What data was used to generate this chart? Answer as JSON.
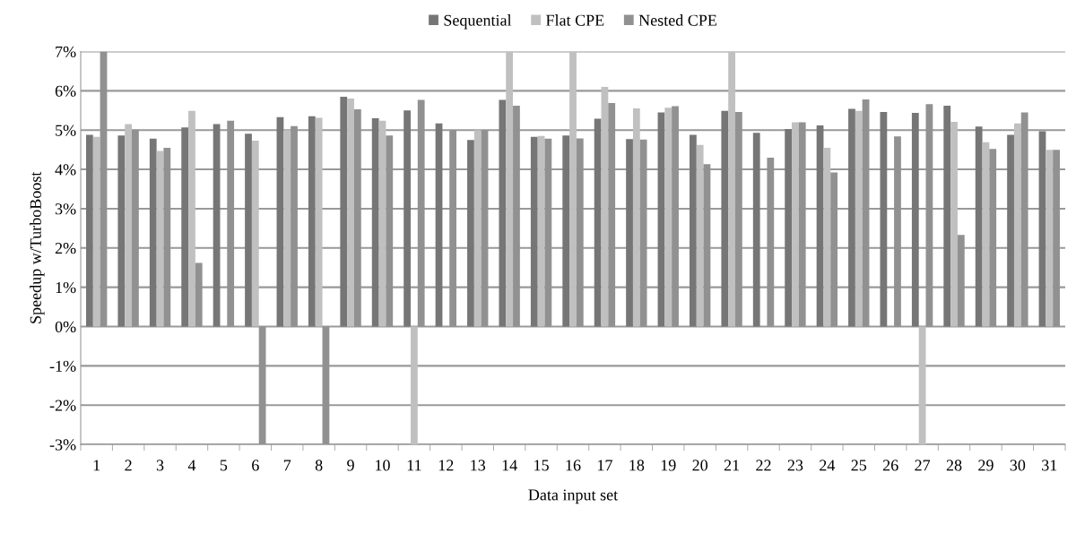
{
  "chart_data": {
    "type": "bar",
    "xlabel": "Data input set",
    "ylabel": "Speedup w/TurboBoost",
    "categories": [
      "1",
      "2",
      "3",
      "4",
      "5",
      "6",
      "7",
      "8",
      "9",
      "10",
      "11",
      "12",
      "13",
      "14",
      "15",
      "16",
      "17",
      "18",
      "19",
      "20",
      "21",
      "22",
      "23",
      "24",
      "25",
      "26",
      "27",
      "28",
      "29",
      "30",
      "31"
    ],
    "series": [
      {
        "name": "Sequential",
        "color": "#767676",
        "values": [
          4.88,
          4.86,
          4.78,
          5.07,
          5.15,
          4.91,
          5.33,
          5.35,
          5.85,
          5.3,
          5.5,
          5.17,
          4.75,
          5.77,
          4.83,
          4.86,
          5.29,
          4.77,
          5.45,
          4.88,
          5.49,
          4.93,
          5.03,
          5.12,
          5.54,
          5.46,
          5.44,
          5.62,
          5.09,
          4.88,
          4.97
        ]
      },
      {
        "name": "Flat CPE",
        "color": "#c0c0c0",
        "values": [
          4.83,
          5.15,
          4.47,
          5.49,
          null,
          4.73,
          5.0,
          5.31,
          5.8,
          5.24,
          -3,
          null,
          5.0,
          7,
          4.85,
          7,
          6.1,
          5.55,
          5.57,
          4.62,
          7,
          null,
          5.2,
          4.55,
          5.49,
          null,
          -3,
          5.21,
          4.69,
          5.17,
          4.5
        ]
      },
      {
        "name": "Nested CPE",
        "color": "#919191",
        "values": [
          7,
          5.01,
          4.55,
          1.62,
          5.24,
          -3,
          5.1,
          -3,
          5.53,
          4.86,
          5.77,
          5.0,
          5.0,
          5.62,
          4.78,
          4.79,
          5.69,
          4.76,
          5.61,
          4.13,
          5.46,
          4.3,
          5.2,
          3.92,
          5.78,
          4.84,
          5.66,
          2.33,
          4.52,
          5.45,
          4.5
        ]
      }
    ],
    "ylim": [
      -3,
      7
    ],
    "yticks": [
      {
        "value": -3,
        "label": "-3%"
      },
      {
        "value": -2,
        "label": "-2%"
      },
      {
        "value": -1,
        "label": "-1%"
      },
      {
        "value": 0,
        "label": "0%"
      },
      {
        "value": 1,
        "label": "1%"
      },
      {
        "value": 2,
        "label": "2%"
      },
      {
        "value": 3,
        "label": "3%"
      },
      {
        "value": 4,
        "label": "4%"
      },
      {
        "value": 5,
        "label": "5%"
      },
      {
        "value": 6,
        "label": "6%"
      },
      {
        "value": 7,
        "label": "7%"
      }
    ],
    "grid": "y",
    "legend": "top"
  }
}
